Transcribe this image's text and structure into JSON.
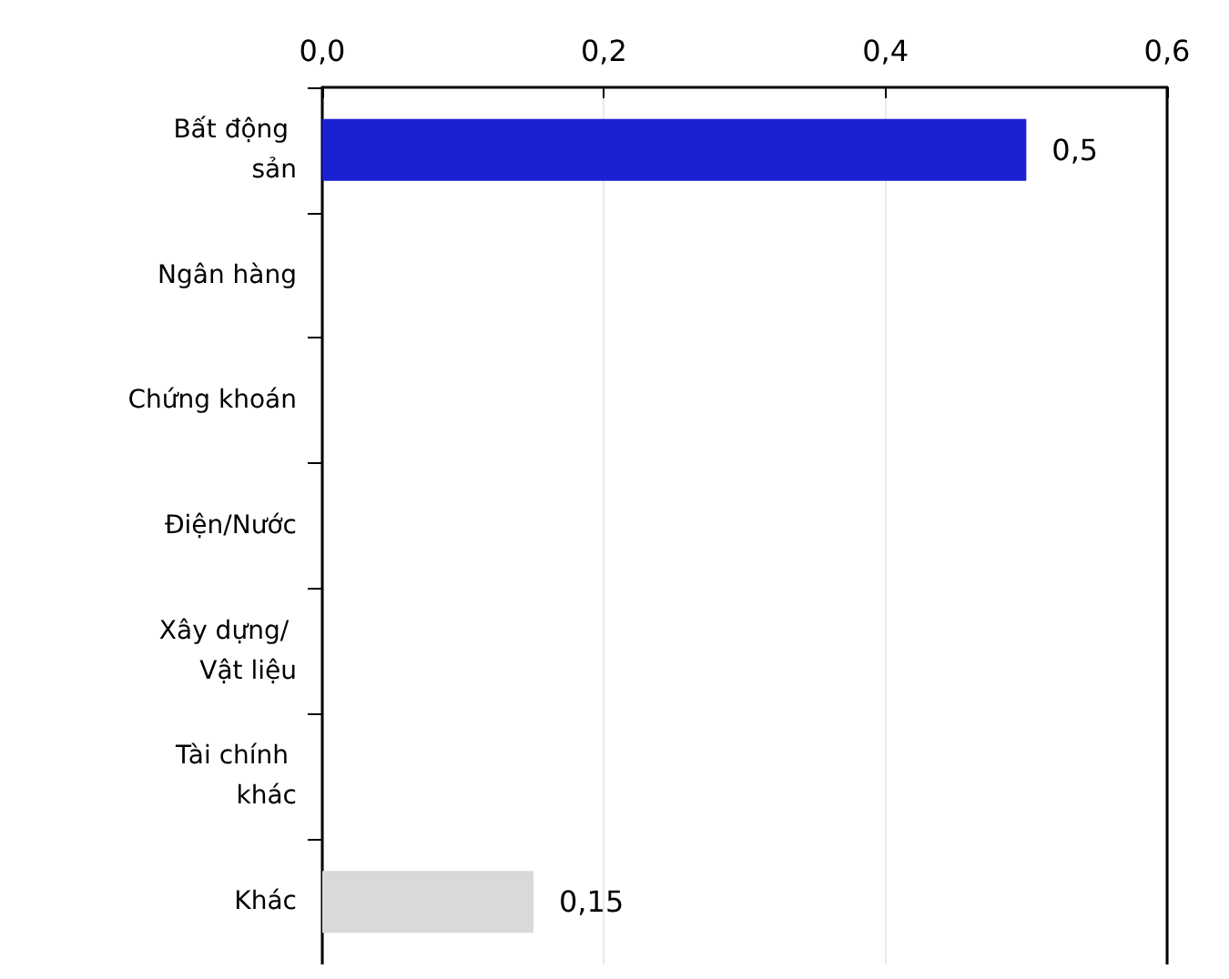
{
  "chart_data": {
    "type": "bar",
    "orientation": "horizontal",
    "categories": [
      "Bất động sản",
      "Ngân hàng",
      "Chứng khoán",
      "Điện/Nước",
      "Xây dựng/ Vật liệu",
      "Tài chính khác",
      "Khác"
    ],
    "values": [
      0.5,
      null,
      null,
      null,
      null,
      null,
      0.15
    ],
    "colors": [
      "#1a1fd1",
      "#d9d9d9",
      "#d9d9d9",
      "#d9d9d9",
      "#d9d9d9",
      "#d9d9d9",
      "#d9d9d9"
    ],
    "value_labels": [
      "0,5",
      null,
      null,
      null,
      null,
      null,
      "0,15"
    ],
    "xlim": [
      0,
      0.6
    ],
    "xticks": [
      {
        "value": 0,
        "label": "0,0"
      },
      {
        "value": 0.2,
        "label": "0,2"
      },
      {
        "value": 0.4,
        "label": "0,4"
      },
      {
        "value": 0.6,
        "label": "0,6"
      }
    ],
    "grid": "x"
  }
}
